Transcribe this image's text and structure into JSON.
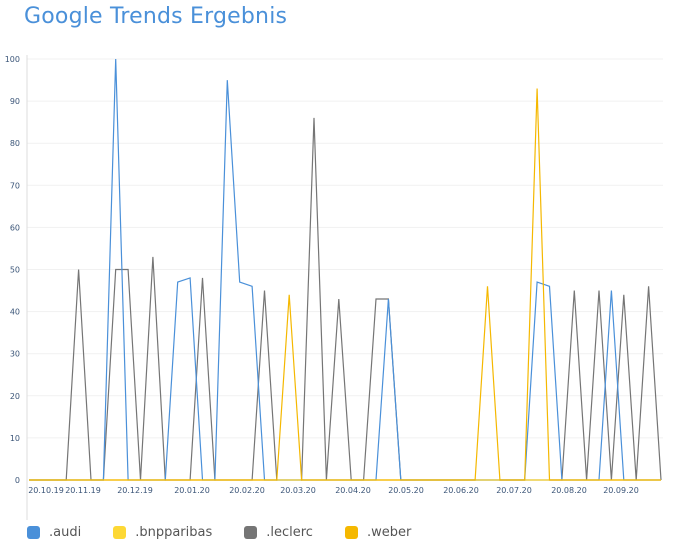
{
  "title": "Google Trends Ergebnis",
  "legend": [
    {
      "label": ".audi",
      "color": "#4a90d9"
    },
    {
      "label": ".bnpparibas",
      "color": "#fdd835"
    },
    {
      "label": ".leclerc",
      "color": "#757575"
    },
    {
      "label": ".weber",
      "color": "#f5b800"
    }
  ],
  "chart_data": {
    "type": "line",
    "title": "Google Trends Ergebnis",
    "xlabel": "",
    "ylabel": "",
    "ylim": [
      0,
      100
    ],
    "yticks": [
      0,
      10,
      20,
      30,
      40,
      50,
      60,
      70,
      80,
      90,
      100
    ],
    "grid": true,
    "legend_position": "bottom",
    "x_tick_labels": [
      "20.10.19",
      "20.11.19",
      "20.12.19",
      "20.01.20",
      "20.02.20",
      "20.03.20",
      "20.04.20",
      "20.05.20",
      "20.06.20",
      "20.07.20",
      "20.08.20",
      "20.09.20"
    ],
    "n_points": 52,
    "series": [
      {
        "name": ".audi",
        "color": "#4a90d9",
        "values": [
          0,
          0,
          0,
          0,
          0,
          0,
          0,
          100,
          0,
          0,
          0,
          0,
          47,
          48,
          0,
          0,
          95,
          47,
          46,
          0,
          0,
          0,
          0,
          0,
          0,
          0,
          0,
          0,
          0,
          43,
          0,
          0,
          0,
          0,
          0,
          0,
          0,
          0,
          0,
          0,
          0,
          47,
          46,
          0,
          0,
          0,
          0,
          45,
          0,
          0,
          0,
          0
        ]
      },
      {
        "name": ".bnpparibas",
        "color": "#fdd835",
        "values": [
          0,
          0,
          0,
          0,
          0,
          0,
          0,
          0,
          0,
          0,
          0,
          0,
          0,
          0,
          0,
          0,
          0,
          0,
          0,
          0,
          0,
          0,
          0,
          0,
          0,
          0,
          0,
          0,
          0,
          0,
          0,
          0,
          0,
          0,
          0,
          0,
          0,
          0,
          0,
          0,
          0,
          0,
          0,
          0,
          0,
          0,
          0,
          0,
          0,
          0,
          0,
          0
        ]
      },
      {
        "name": ".leclerc",
        "color": "#757575",
        "values": [
          0,
          0,
          0,
          0,
          50,
          0,
          0,
          50,
          50,
          0,
          53,
          0,
          0,
          0,
          48,
          0,
          0,
          0,
          0,
          45,
          0,
          0,
          0,
          86,
          0,
          43,
          0,
          0,
          43,
          43,
          0,
          0,
          0,
          0,
          0,
          0,
          0,
          0,
          0,
          0,
          0,
          0,
          0,
          0,
          45,
          0,
          45,
          0,
          44,
          0,
          46,
          0
        ]
      },
      {
        "name": ".weber",
        "color": "#f5b800",
        "values": [
          0,
          0,
          0,
          0,
          0,
          0,
          0,
          0,
          0,
          0,
          0,
          0,
          0,
          0,
          0,
          0,
          0,
          0,
          0,
          0,
          0,
          44,
          0,
          0,
          0,
          0,
          0,
          0,
          0,
          0,
          0,
          0,
          0,
          0,
          0,
          0,
          0,
          46,
          0,
          0,
          0,
          93,
          0,
          0,
          0,
          0,
          0,
          0,
          0,
          0,
          0,
          0
        ]
      }
    ]
  }
}
